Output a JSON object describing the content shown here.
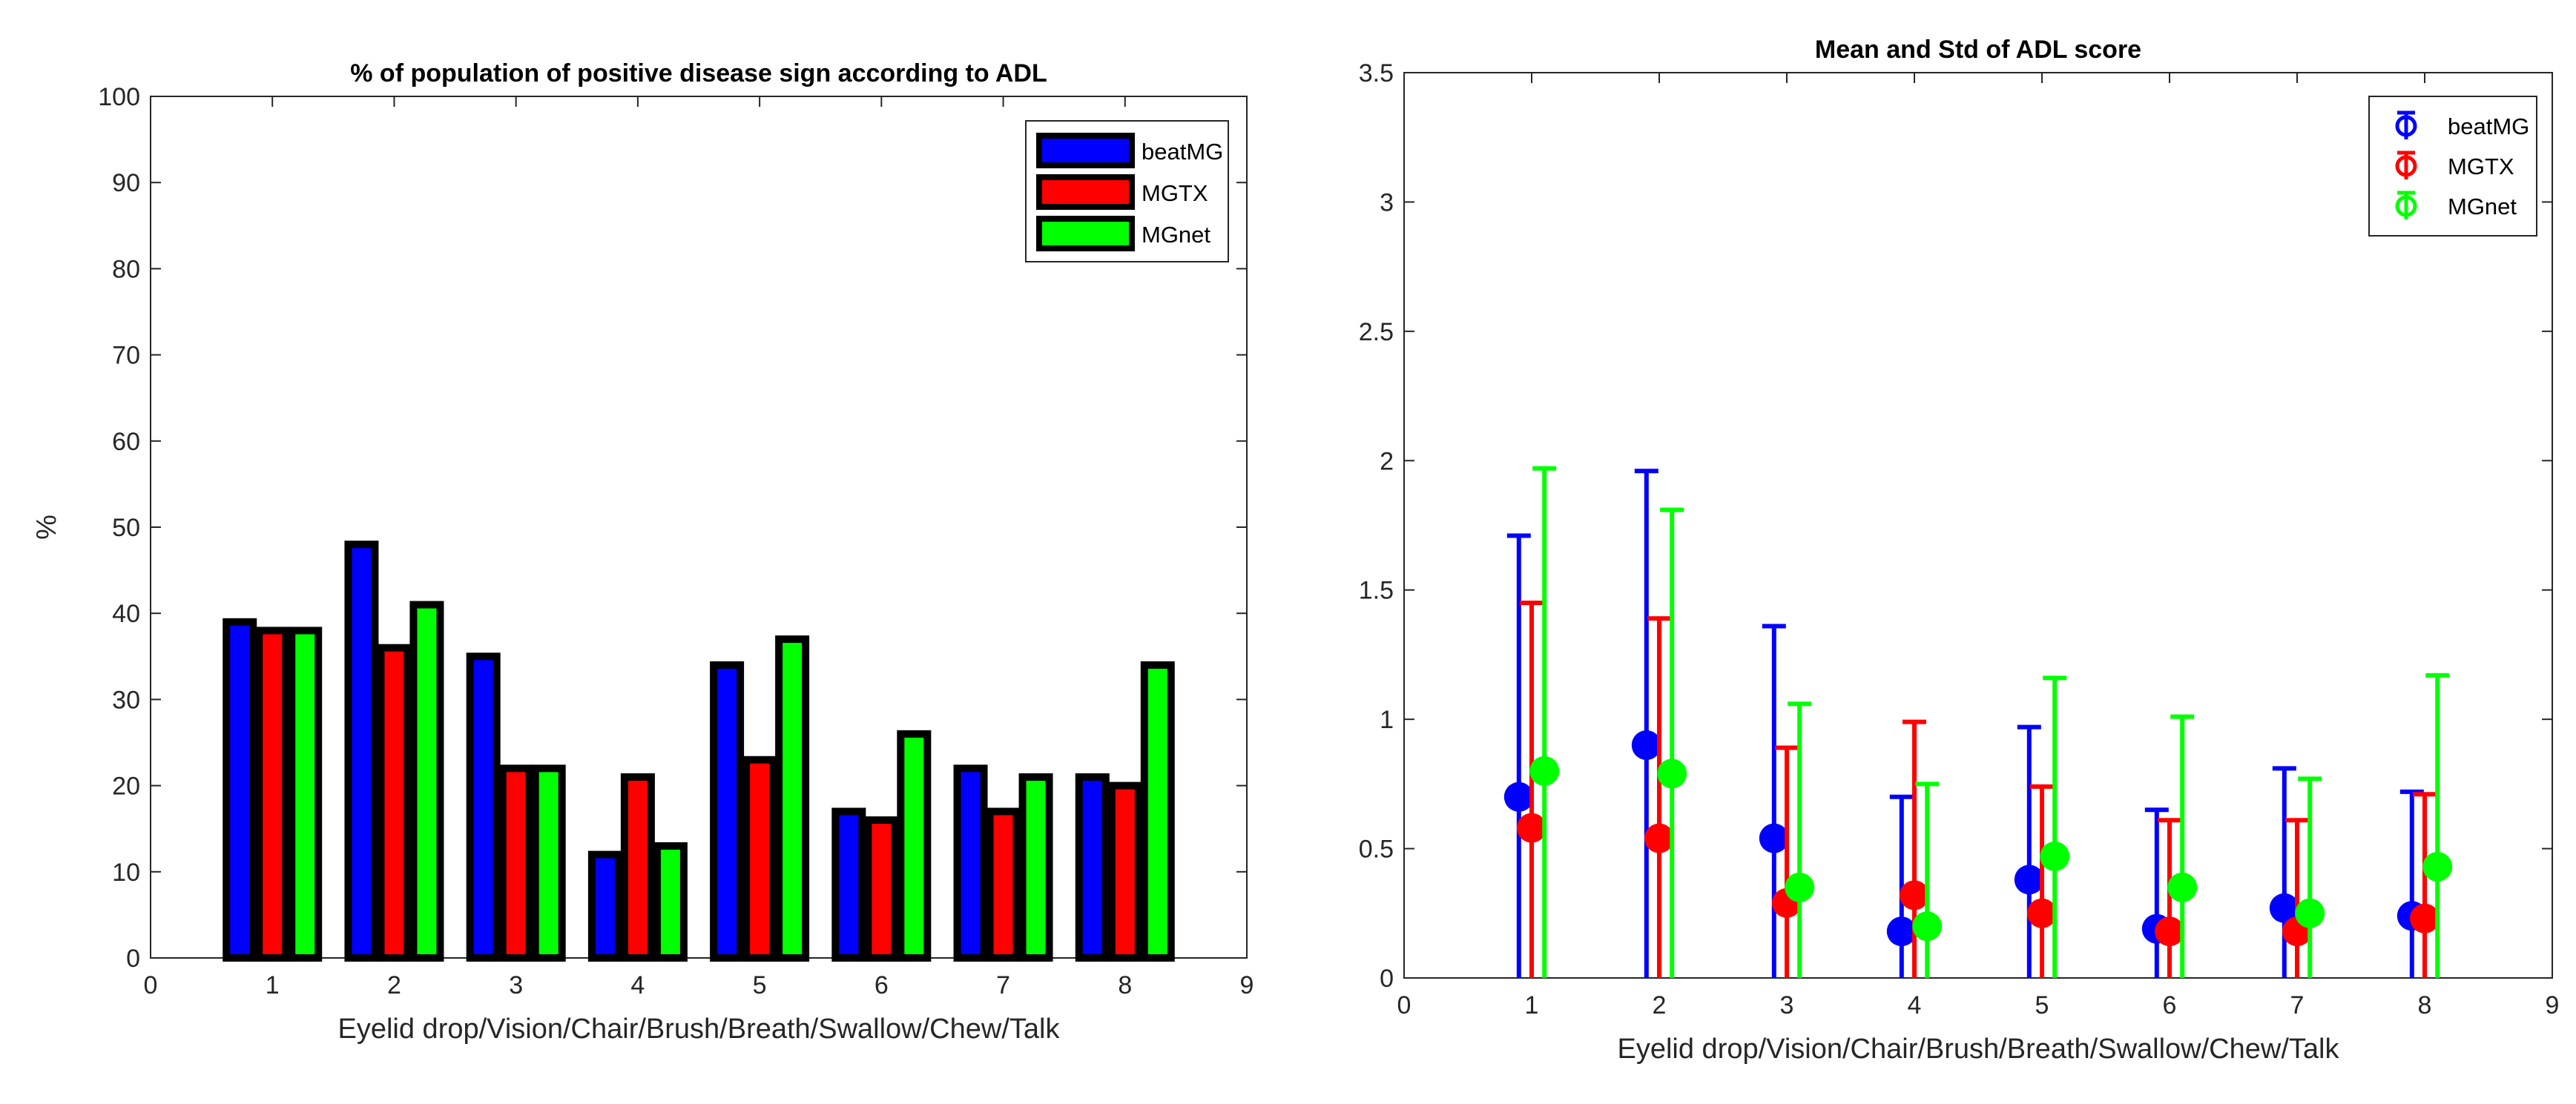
{
  "chart_data": [
    {
      "type": "bar",
      "title": "% of population of positive disease sign according to ADL",
      "xlabel": "Eyelid drop/Vision/Chair/Brush/Breath/Swallow/Chew/Talk",
      "ylabel": "%",
      "xlim": [
        0,
        9
      ],
      "ylim": [
        0,
        100
      ],
      "xticks": [
        "0",
        "1",
        "2",
        "3",
        "4",
        "5",
        "6",
        "7",
        "8",
        "9"
      ],
      "yticks": [
        "0",
        "10",
        "20",
        "30",
        "40",
        "50",
        "60",
        "70",
        "80",
        "90",
        "100"
      ],
      "x": [
        1,
        2,
        3,
        4,
        5,
        6,
        7,
        8
      ],
      "legend_position": "top-right",
      "grid": false,
      "series": [
        {
          "name": "beatMG",
          "color": "#0000ff",
          "values": [
            39,
            48,
            35,
            12,
            34,
            17,
            22,
            21
          ]
        },
        {
          "name": "MGTX",
          "color": "#ff0000",
          "values": [
            38,
            36,
            22,
            21,
            23,
            16,
            17,
            20
          ]
        },
        {
          "name": "MGnet",
          "color": "#00ff00",
          "values": [
            38,
            41,
            22,
            13,
            37,
            26,
            21,
            34
          ]
        }
      ]
    },
    {
      "type": "scatter",
      "subtype": "errorbar",
      "title": "Mean and Std of ADL score",
      "xlabel": "Eyelid drop/Vision/Chair/Brush/Breath/Swallow/Chew/Talk",
      "ylabel": "",
      "xlim": [
        0,
        9
      ],
      "ylim": [
        0,
        3.5
      ],
      "xticks": [
        "0",
        "1",
        "2",
        "3",
        "4",
        "5",
        "6",
        "7",
        "8",
        "9"
      ],
      "yticks": [
        "0",
        "0.5",
        "1",
        "1.5",
        "2",
        "2.5",
        "3",
        "3.5"
      ],
      "legend_position": "top-right",
      "grid": false,
      "series": [
        {
          "name": "beatMG",
          "color": "#0000ff",
          "x": [
            0.9,
            1.9,
            2.9,
            3.9,
            4.9,
            5.9,
            6.9,
            7.9
          ],
          "mean": [
            0.7,
            0.9,
            0.54,
            0.18,
            0.38,
            0.19,
            0.27,
            0.24
          ],
          "upper": [
            1.71,
            1.96,
            1.36,
            0.7,
            0.97,
            0.65,
            0.81,
            0.72
          ]
        },
        {
          "name": "MGTX",
          "color": "#ff0000",
          "x": [
            1.0,
            2.0,
            3.0,
            4.0,
            5.0,
            6.0,
            7.0,
            8.0
          ],
          "mean": [
            0.58,
            0.54,
            0.29,
            0.32,
            0.25,
            0.18,
            0.18,
            0.23
          ],
          "upper": [
            1.45,
            1.39,
            0.89,
            0.99,
            0.74,
            0.61,
            0.61,
            0.71
          ]
        },
        {
          "name": "MGnet",
          "color": "#00ff00",
          "x": [
            1.1,
            2.1,
            3.1,
            4.1,
            5.1,
            6.1,
            7.1,
            8.1
          ],
          "mean": [
            0.8,
            0.79,
            0.35,
            0.2,
            0.47,
            0.35,
            0.25,
            0.43
          ],
          "upper": [
            1.97,
            1.81,
            1.06,
            0.75,
            1.16,
            1.01,
            0.77,
            1.17
          ]
        }
      ]
    }
  ]
}
